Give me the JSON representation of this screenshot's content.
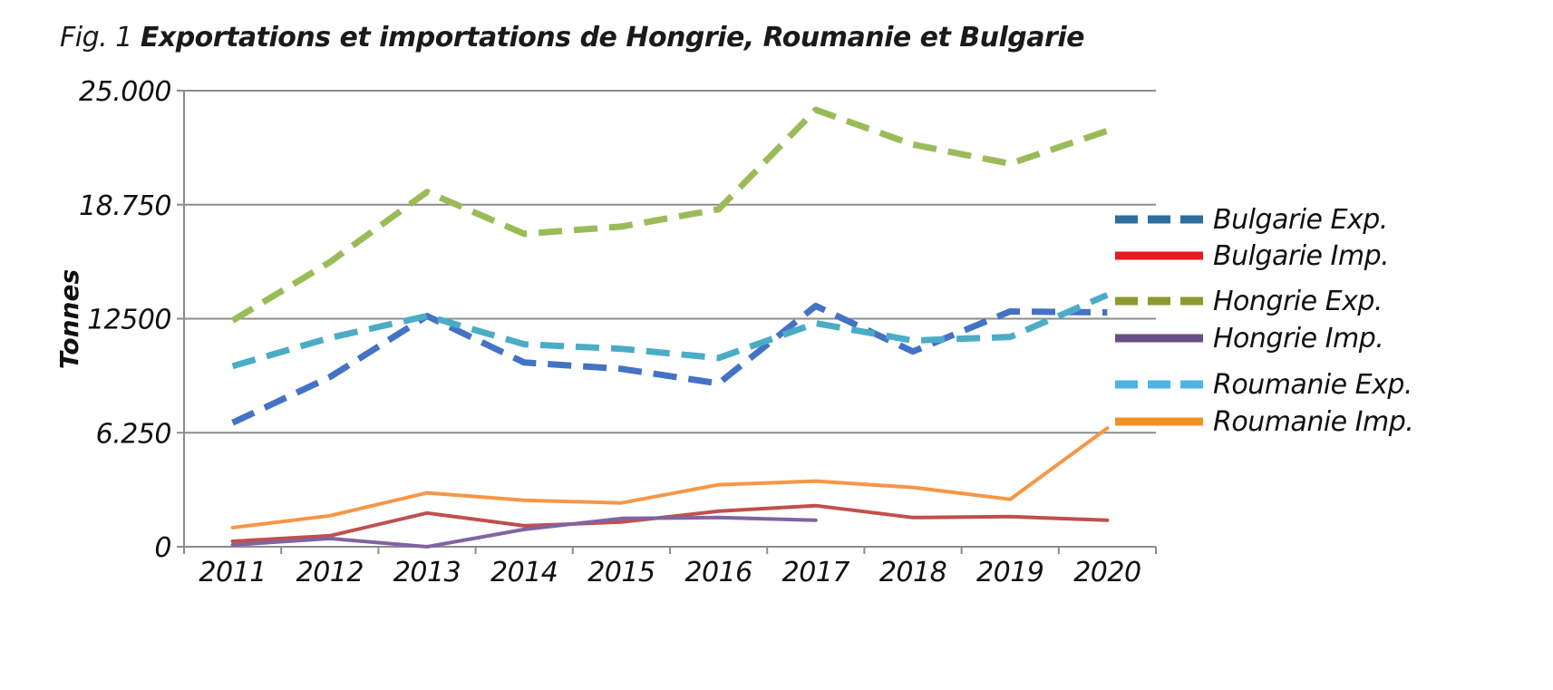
{
  "figure": {
    "title_lead": "Fig. 1 ",
    "title_main": "Exportations et importations de Hongrie, Roumanie et Bulgarie"
  },
  "chart_data": {
    "type": "line",
    "title": "Fig. 1 Exportations et importations de Hongrie, Roumanie et Bulgarie",
    "xlabel": "",
    "ylabel": "Tonnes",
    "categories": [
      "2011",
      "2012",
      "2013",
      "2014",
      "2015",
      "2016",
      "2017",
      "2018",
      "2019",
      "2020"
    ],
    "ylim": [
      0,
      25000
    ],
    "yticks": [
      0,
      6250,
      12500,
      18750,
      25000
    ],
    "ytick_labels": [
      "0",
      "6.250",
      "12500",
      "18.750",
      "25.000"
    ],
    "grid": "horizontal",
    "legend_position": "right",
    "series": [
      {
        "name": "Bulgarie Exp.",
        "style": "dashed",
        "color": "#4472c4",
        "legend_color": "#2e6e9e",
        "values": [
          6800,
          9300,
          12650,
          10100,
          9750,
          8950,
          13200,
          10700,
          12900,
          12850
        ]
      },
      {
        "name": "Bulgarie Imp.",
        "style": "solid",
        "color": "#c0504d",
        "legend_color": "#e31b23",
        "values": [
          300,
          600,
          1850,
          1150,
          1350,
          1950,
          2250,
          1600,
          1650,
          1450
        ]
      },
      {
        "name": "Hongrie Exp.",
        "style": "dashed",
        "color": "#9bbb59",
        "legend_color": "#8c9a2e",
        "values": [
          12400,
          15600,
          19450,
          17150,
          17550,
          18500,
          23950,
          22050,
          21000,
          22800
        ]
      },
      {
        "name": "Hongrie Imp.",
        "style": "solid",
        "color": "#8064a2",
        "legend_color": "#6a4f87",
        "values": [
          100,
          450,
          0,
          950,
          1550,
          1600,
          1450,
          null,
          null,
          null
        ]
      },
      {
        "name": "Roumanie Exp.",
        "style": "dashed",
        "color": "#4bacc6",
        "legend_color": "#4fb3e6",
        "values": [
          9900,
          11450,
          12650,
          11100,
          10850,
          10350,
          12250,
          11300,
          11500,
          13800
        ]
      },
      {
        "name": "Roumanie Imp.",
        "style": "solid",
        "color": "#f79646",
        "legend_color": "#f39222",
        "values": [
          1050,
          1700,
          2950,
          2550,
          2400,
          3400,
          3600,
          3250,
          2600,
          6500
        ]
      }
    ]
  }
}
